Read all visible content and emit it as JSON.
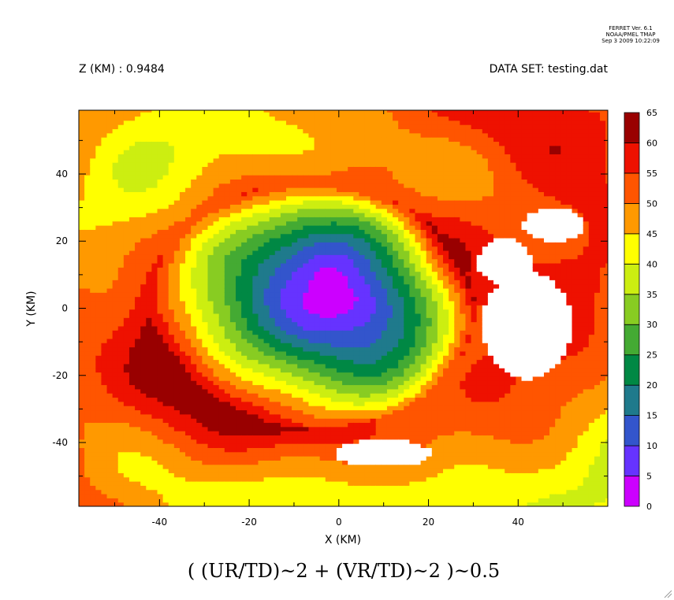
{
  "header": {
    "ferret_lines": [
      "FERRET Ver. 6.1",
      "NOAA/PMEL TMAP",
      "Sep  3 2009 10:22:09"
    ],
    "z_label": "Z (KM) : 0.9484",
    "dataset_label": "DATA SET: testing.dat"
  },
  "chart_data": {
    "type": "heatmap",
    "title": "( (UR/TD)~2 + (VR/TD)~2 )~0.5",
    "xlabel": "X (KM)",
    "ylabel": "Y (KM)",
    "xlim": [
      -58,
      60
    ],
    "ylim": [
      -59,
      59
    ],
    "x_ticks": [
      -40,
      -20,
      0,
      20,
      40
    ],
    "y_ticks": [
      -40,
      -20,
      0,
      20,
      40
    ],
    "colorbar": {
      "levels": [
        0,
        5,
        10,
        15,
        20,
        25,
        30,
        35,
        40,
        45,
        50,
        55,
        60,
        65
      ],
      "colors": [
        "#cc00ff",
        "#6633ff",
        "#3355cc",
        "#1f7a8c",
        "#008844",
        "#44aa33",
        "#88cc22",
        "#ccee11",
        "#ffff00",
        "#ff9900",
        "#ff5500",
        "#ee1100",
        "#990000"
      ]
    },
    "missing_color": "#ffffff",
    "structure": {
      "center_x": 0,
      "center_y": 5,
      "center_min_value": 2,
      "eyewall_max_value": 63
    }
  }
}
